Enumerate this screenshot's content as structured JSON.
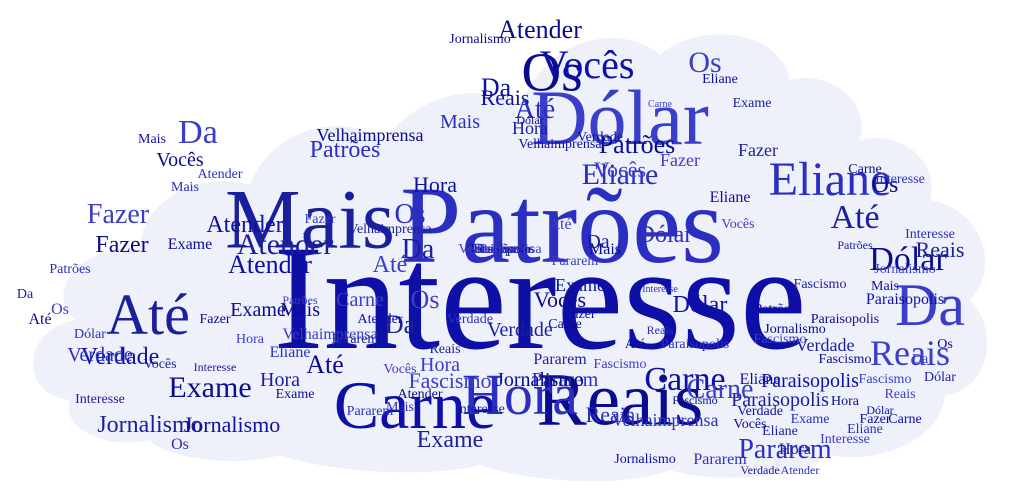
{
  "colors": {
    "background": "#ffffff",
    "cloud": "#eef0fa",
    "words": [
      "#0d0fa6",
      "#2b2fc1",
      "#1a1f9c",
      "#3a3ec8",
      "#0a0c8e"
    ]
  },
  "words": [
    {
      "text": "Interesse"
    },
    {
      "text": "Patrões"
    },
    {
      "text": "Mais"
    },
    {
      "text": "Dólar"
    },
    {
      "text": "Reais"
    },
    {
      "text": "Carne"
    },
    {
      "text": "Hora"
    },
    {
      "text": "Até"
    },
    {
      "text": "Da"
    },
    {
      "text": "Os"
    },
    {
      "text": "Vocês"
    },
    {
      "text": "Eliane"
    },
    {
      "text": "Atender"
    },
    {
      "text": "Fazer"
    },
    {
      "text": "Exame"
    },
    {
      "text": "Verdade"
    },
    {
      "text": "Pararem"
    },
    {
      "text": "Jornalismo"
    },
    {
      "text": "Fascismo"
    },
    {
      "text": "Velhaimprensa"
    },
    {
      "text": "Paraisopolis"
    },
    {
      "text": "Interesse"
    },
    {
      "text": "Patrões"
    },
    {
      "text": "Reais"
    },
    {
      "text": "Dólar"
    },
    {
      "text": "Atender"
    },
    {
      "text": "Eliane"
    },
    {
      "text": "Exame"
    },
    {
      "text": "Fazer"
    },
    {
      "text": "Vocês"
    },
    {
      "text": "Hora"
    },
    {
      "text": "Mais"
    },
    {
      "text": "Até"
    },
    {
      "text": "Da"
    },
    {
      "text": "Os"
    },
    {
      "text": "Carne"
    },
    {
      "text": "Pararem"
    },
    {
      "text": "Verdade"
    },
    {
      "text": "Fascismo"
    },
    {
      "text": "Jornalismo"
    },
    {
      "text": "Reais"
    },
    {
      "text": "Mais"
    },
    {
      "text": "Hora"
    },
    {
      "text": "Os"
    },
    {
      "text": "Dólar"
    },
    {
      "text": "Da"
    },
    {
      "text": "Até"
    },
    {
      "text": "Exame"
    },
    {
      "text": "Carne"
    },
    {
      "text": "Patrões"
    },
    {
      "text": "Eliane"
    },
    {
      "text": "Interesse"
    },
    {
      "text": "Fazer"
    },
    {
      "text": "Vocês"
    },
    {
      "text": "Atender"
    },
    {
      "text": "Verdade"
    },
    {
      "text": "Pararem"
    },
    {
      "text": "Paraisopolis"
    },
    {
      "text": "Velhaimprensa"
    },
    {
      "text": "Fascismo"
    },
    {
      "text": "Jornalismo"
    },
    {
      "text": "Os"
    },
    {
      "text": "Da"
    },
    {
      "text": "Até"
    },
    {
      "text": "Mais"
    },
    {
      "text": "Dólar"
    },
    {
      "text": "Reais"
    },
    {
      "text": "Hora"
    },
    {
      "text": "Carne"
    },
    {
      "text": "Exame"
    },
    {
      "text": "Eliane"
    },
    {
      "text": "Patrões"
    },
    {
      "text": "Interesse"
    },
    {
      "text": "Vocês"
    },
    {
      "text": "Fazer"
    },
    {
      "text": "Atender"
    },
    {
      "text": "Verdade"
    },
    {
      "text": "Pararem"
    },
    {
      "text": "Fascismo"
    },
    {
      "text": "Jornalismo"
    },
    {
      "text": "Paraisopolis"
    },
    {
      "text": "Velhaimprensa"
    },
    {
      "text": "Da"
    },
    {
      "text": "Os"
    },
    {
      "text": "Até"
    },
    {
      "text": "Mais"
    },
    {
      "text": "Dólar"
    },
    {
      "text": "Reais"
    },
    {
      "text": "Hora"
    },
    {
      "text": "Carne"
    },
    {
      "text": "Exame"
    },
    {
      "text": "Eliane"
    },
    {
      "text": "Interesse"
    },
    {
      "text": "Patrões"
    },
    {
      "text": "Vocês"
    },
    {
      "text": "Fazer"
    },
    {
      "text": "Atender"
    },
    {
      "text": "Verdade"
    },
    {
      "text": "Pararem"
    },
    {
      "text": "Fascismo"
    },
    {
      "text": "Jornalismo"
    },
    {
      "text": "Os"
    },
    {
      "text": "Da"
    },
    {
      "text": "Até"
    },
    {
      "text": "Mais"
    },
    {
      "text": "Dólar"
    },
    {
      "text": "Reais"
    },
    {
      "text": "Hora"
    },
    {
      "text": "Carne"
    },
    {
      "text": "Exame"
    },
    {
      "text": "Eliane"
    },
    {
      "text": "Interesse"
    },
    {
      "text": "Vocês"
    },
    {
      "text": "Fazer"
    },
    {
      "text": "Atender"
    },
    {
      "text": "Verdade"
    },
    {
      "text": "Pararem"
    },
    {
      "text": "Fascismo"
    },
    {
      "text": "Jornalismo"
    },
    {
      "text": "Paraisopolis"
    },
    {
      "text": "Velhaimprensa"
    },
    {
      "text": "Patrões"
    },
    {
      "text": "Da"
    },
    {
      "text": "Os"
    },
    {
      "text": "Até"
    },
    {
      "text": "Mais"
    },
    {
      "text": "Dólar"
    },
    {
      "text": "Reais"
    },
    {
      "text": "Hora"
    },
    {
      "text": "Carne"
    },
    {
      "text": "Exame"
    },
    {
      "text": "Eliane"
    },
    {
      "text": "Interesse"
    },
    {
      "text": "Vocês"
    },
    {
      "text": "Fazer"
    },
    {
      "text": "Atender"
    },
    {
      "text": "Verdade"
    },
    {
      "text": "Pararem"
    },
    {
      "text": "Fascismo"
    },
    {
      "text": "Jornalismo"
    },
    {
      "text": "Patrões"
    },
    {
      "text": "Paraisopolis"
    },
    {
      "text": "Velhaimprensa"
    },
    {
      "text": "Da"
    },
    {
      "text": "Os"
    },
    {
      "text": "Até"
    },
    {
      "text": "Mais"
    },
    {
      "text": "Dólar"
    },
    {
      "text": "Reais"
    },
    {
      "text": "Hora"
    },
    {
      "text": "Carne"
    },
    {
      "text": "Exame"
    },
    {
      "text": "Eliane"
    },
    {
      "text": "Interesse"
    },
    {
      "text": "Vocês"
    },
    {
      "text": "Fazer"
    },
    {
      "text": "Atender"
    },
    {
      "text": "Verdade"
    },
    {
      "text": "Pararem"
    },
    {
      "text": "Fascismo"
    },
    {
      "text": "Jornalismo"
    },
    {
      "text": "Patrões"
    },
    {
      "text": "Paraisopolis"
    },
    {
      "text": "Velhaimprensa"
    }
  ]
}
